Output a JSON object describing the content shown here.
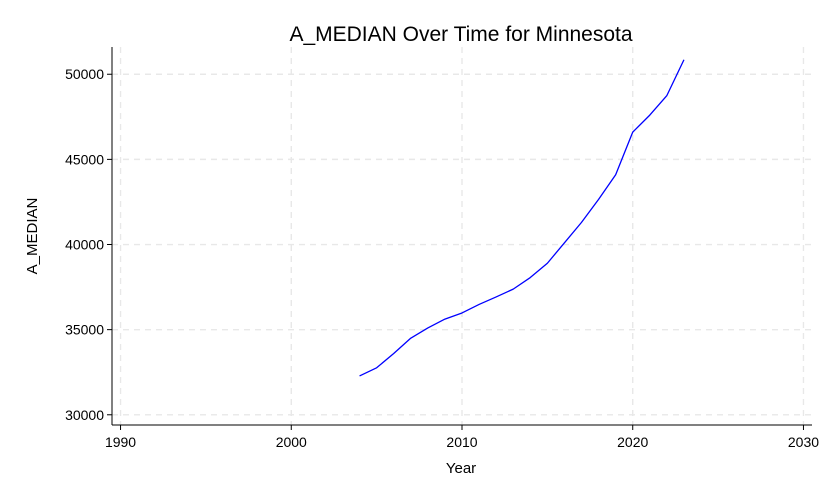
{
  "chart_data": {
    "type": "line",
    "title": "A_MEDIAN Over Time for Minnesota",
    "xlabel": "Year",
    "ylabel": "A_MEDIAN",
    "xlim": [
      1989.5,
      2030.5
    ],
    "ylim": [
      29400,
      51600
    ],
    "xticks": [
      1990,
      2000,
      2010,
      2020,
      2030
    ],
    "yticks": [
      30000,
      35000,
      40000,
      45000,
      50000
    ],
    "grid": true,
    "series": [
      {
        "color": "#0000ff",
        "x": [
          2004,
          2005,
          2006,
          2007,
          2008,
          2009,
          2010,
          2011,
          2012,
          2013,
          2014,
          2015,
          2016,
          2017,
          2018,
          2019,
          2020,
          2021,
          2022,
          2023
        ],
        "y": [
          32280,
          32760,
          33600,
          34500,
          35100,
          35620,
          35980,
          36480,
          36920,
          37380,
          38060,
          38900,
          40100,
          41300,
          42650,
          44100,
          46600,
          47600,
          48750,
          50850
        ]
      }
    ]
  }
}
